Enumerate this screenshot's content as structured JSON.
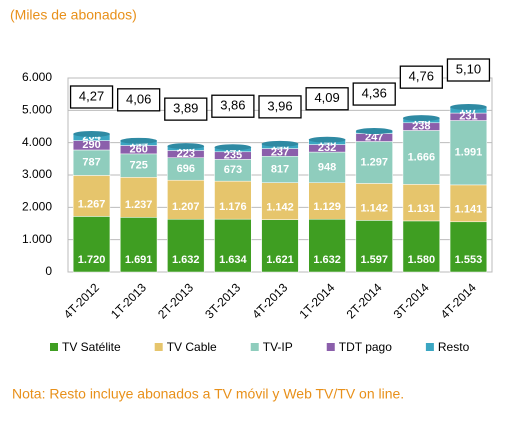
{
  "chart_data": {
    "type": "stacked-bar",
    "title": "(Miles de abonados)",
    "note": "Nota: Resto incluye abonados a TV móvil y Web TV/TV on line.",
    "categories": [
      "4T-2012",
      "1T-2013",
      "2T-2013",
      "3T-2013",
      "4T-2013",
      "1T-2014",
      "2T-2014",
      "3T-2014",
      "4T-2014"
    ],
    "series": [
      {
        "name": "TV Satélite",
        "color": "#3f9e22",
        "values": [
          1720,
          1691,
          1632,
          1634,
          1621,
          1632,
          1597,
          1580,
          1553
        ],
        "value_labels": [
          "1.720",
          "1.691",
          "1.632",
          "1.634",
          "1.621",
          "1.632",
          "1.597",
          "1.580",
          "1.553"
        ]
      },
      {
        "name": "TV Cable",
        "color": "#e6c56c",
        "values": [
          1267,
          1237,
          1207,
          1176,
          1142,
          1129,
          1142,
          1131,
          1141
        ],
        "value_labels": [
          "1.267",
          "1.237",
          "1.207",
          "1.176",
          "1.142",
          "1.129",
          "1.142",
          "1.131",
          "1.141"
        ]
      },
      {
        "name": "TV-IP",
        "color": "#8fcdbd",
        "values": [
          787,
          725,
          696,
          673,
          817,
          948,
          1297,
          1666,
          1991
        ],
        "value_labels": [
          "787",
          "725",
          "696",
          "673",
          "817",
          "948",
          "1.297",
          "1.666",
          "1.991"
        ]
      },
      {
        "name": "TDT pago",
        "color": "#8b5fab",
        "values": [
          290,
          260,
          223,
          235,
          237,
          232,
          247,
          238,
          231
        ]
      },
      {
        "name": "Resto",
        "color": "#3ba6c2",
        "values": [
          204,
          144,
          135,
          141,
          146,
          148,
          76,
          143,
          187
        ]
      }
    ],
    "totals": {
      "values": [
        4.27,
        4.06,
        3.89,
        3.86,
        3.96,
        4.09,
        4.36,
        4.76,
        5.1
      ],
      "value_labels": [
        "4,27",
        "4,06",
        "3,89",
        "3,86",
        "3,96",
        "4,09",
        "4,36",
        "4,76",
        "5,10"
      ]
    },
    "ylim": [
      0,
      6000
    ],
    "yticks": [
      0,
      {
        "value": 1000,
        "label": "1.000"
      },
      {
        "value": 2000,
        "label": "2.000"
      },
      {
        "value": 3000,
        "label": "3.000"
      },
      {
        "value": 4000,
        "label": "4.000"
      },
      {
        "value": 5000,
        "label": "5.000"
      },
      {
        "value": 6000,
        "label": "6.000"
      }
    ],
    "grid": true
  }
}
